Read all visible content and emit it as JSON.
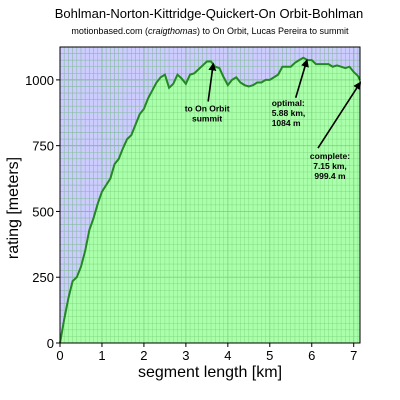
{
  "chart_data": {
    "type": "area",
    "title": "Bohlman-Norton-Kittridge-Quickert-On Orbit-Bohlman",
    "subtitle": {
      "before": "motionbased.com (",
      "italic": "craigthomas",
      "after": ") to On Orbit, Lucas Pereira to summit"
    },
    "xlabel": "segment length [km]",
    "ylabel": "rating [meters]",
    "xlim": [
      0,
      7.15
    ],
    "ylim": [
      0,
      1125
    ],
    "xticks": [
      "0",
      "1",
      "2",
      "3",
      "4",
      "5",
      "6",
      "7"
    ],
    "yticks": [
      "0",
      "250",
      "500",
      "750",
      "1000"
    ],
    "grid": true,
    "colors": {
      "background": "#ccccff",
      "fill": "#aaffaa",
      "line": "#228822",
      "grid": "#aaaaaa"
    },
    "x": [
      0,
      0.1,
      0.2,
      0.3,
      0.4,
      0.5,
      0.6,
      0.7,
      0.8,
      0.9,
      1.0,
      1.1,
      1.2,
      1.3,
      1.4,
      1.5,
      1.6,
      1.7,
      1.8,
      1.9,
      2.0,
      2.1,
      2.2,
      2.3,
      2.4,
      2.5,
      2.6,
      2.7,
      2.8,
      2.9,
      3.0,
      3.1,
      3.2,
      3.3,
      3.4,
      3.5,
      3.6,
      3.7,
      3.8,
      3.9,
      4.0,
      4.1,
      4.2,
      4.3,
      4.4,
      4.5,
      4.6,
      4.7,
      4.8,
      4.9,
      5.0,
      5.1,
      5.2,
      5.3,
      5.4,
      5.5,
      5.6,
      5.7,
      5.8,
      5.9,
      6.0,
      6.1,
      6.2,
      6.3,
      6.4,
      6.5,
      6.6,
      6.7,
      6.8,
      6.9,
      7.0,
      7.1,
      7.15
    ],
    "y": [
      0,
      90,
      170,
      235,
      250,
      290,
      350,
      430,
      475,
      530,
      575,
      600,
      625,
      680,
      700,
      740,
      775,
      790,
      830,
      870,
      890,
      930,
      960,
      990,
      1010,
      1020,
      970,
      985,
      1020,
      1005,
      985,
      1020,
      1025,
      1040,
      1055,
      1070,
      1070,
      1050,
      1045,
      1010,
      980,
      1000,
      1010,
      990,
      980,
      975,
      980,
      990,
      990,
      1000,
      1000,
      1010,
      1020,
      1050,
      1050,
      1050,
      1065,
      1075,
      1084,
      1075,
      1075,
      1060,
      1060,
      1060,
      1060,
      1050,
      1055,
      1050,
      1045,
      1050,
      1030,
      1015,
      999.4
    ],
    "annotations": [
      {
        "lines": [
          "to On Orbit",
          "summit"
        ],
        "x": 3.65,
        "y": 1070
      },
      {
        "lines": [
          "optimal:",
          "5.88 km,",
          "1084 m"
        ],
        "x": 5.88,
        "y": 1084
      },
      {
        "lines": [
          "complete:",
          "7.15 km,",
          "999.4 m"
        ],
        "x": 7.15,
        "y": 999.4
      }
    ]
  }
}
